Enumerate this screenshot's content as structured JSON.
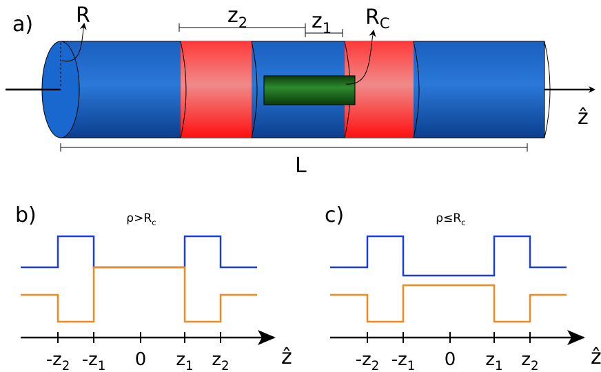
{
  "panel_a": {
    "label": "a)",
    "radius": {
      "base": "R"
    },
    "z2": {
      "base": "z",
      "sub": "2"
    },
    "z1": {
      "base": "z",
      "sub": "1"
    },
    "core_radius": {
      "base": "R",
      "sub": "C"
    },
    "axis": "ẑ",
    "length": "L"
  },
  "panel_b": {
    "label": "b)",
    "condition": {
      "base": "ρ>R",
      "sub": "c"
    },
    "ticks": [
      {
        "base": "-z",
        "sub": "2"
      },
      {
        "base": "-z",
        "sub": "1"
      },
      {
        "base": "0"
      },
      {
        "base": "z",
        "sub": "1"
      },
      {
        "base": "z",
        "sub": "2"
      }
    ],
    "axis": "ẑ"
  },
  "panel_c": {
    "label": "c)",
    "condition": {
      "base": "ρ≤R",
      "sub": "c"
    },
    "ticks": [
      {
        "base": "-z",
        "sub": "2"
      },
      {
        "base": "-z",
        "sub": "1"
      },
      {
        "base": "0"
      },
      {
        "base": "z",
        "sub": "1"
      },
      {
        "base": "z",
        "sub": "2"
      }
    ],
    "axis": "ẑ"
  }
}
